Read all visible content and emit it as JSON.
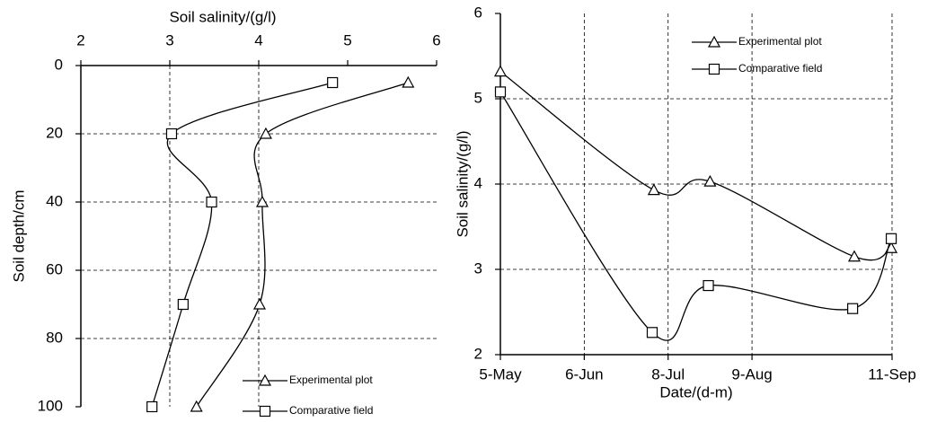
{
  "chart_data": [
    {
      "type": "line",
      "x_label": "Soil salinity/(g/l)",
      "y_label": "Soil depth/cm",
      "xlim": [
        2,
        6
      ],
      "xticks": [
        2,
        3,
        4,
        5,
        6
      ],
      "ylim": [
        0,
        100
      ],
      "yticks": [
        0,
        20,
        40,
        60,
        80,
        100
      ],
      "y_inverted": true,
      "x_axis_position": "top",
      "x_grid": [
        3,
        4
      ],
      "y_grid": [
        20,
        40,
        60,
        80
      ],
      "legend": "lower right",
      "series": [
        {
          "name": "Experimental plot",
          "color": "#000000",
          "marker": "triangle",
          "x": [
            5.68,
            4.08,
            4.04,
            4.01,
            3.3
          ],
          "values": [
            5,
            20,
            40,
            70,
            100
          ]
        },
        {
          "name": "Comparative field",
          "color": "#000000",
          "marker": "square",
          "x": [
            4.83,
            3.02,
            3.47,
            3.15,
            2.8
          ],
          "values": [
            5,
            20,
            40,
            70,
            100
          ]
        }
      ]
    },
    {
      "type": "line",
      "x_label": "Date/(d-m)",
      "y_label": "Soil salinity/(g/l)",
      "xlim": [
        0,
        4.67
      ],
      "xticks": [
        {
          "value": 0,
          "label": "5-May"
        },
        {
          "value": 1,
          "label": "6-Jun"
        },
        {
          "value": 2,
          "label": "8-Jul"
        },
        {
          "value": 3,
          "label": "9-Aug"
        },
        {
          "value": 4.67,
          "label": "11-Sep"
        }
      ],
      "ylim": [
        2,
        6
      ],
      "yticks": [
        2,
        3,
        4,
        5,
        6
      ],
      "y_inverted": false,
      "x_axis_position": "bottom",
      "x_grid": [
        1,
        2,
        3,
        4.67
      ],
      "y_grid": [
        3,
        4,
        5
      ],
      "legend": "upper right",
      "series": [
        {
          "name": "Experimental plot",
          "color": "#000000",
          "marker": "triangle",
          "x": [
            0,
            1.83,
            2.5,
            4.22,
            4.66
          ],
          "values": [
            5.32,
            3.93,
            4.03,
            3.15,
            3.25
          ]
        },
        {
          "name": "Comparative field",
          "color": "#000000",
          "marker": "square",
          "x": [
            0,
            1.81,
            2.48,
            4.2,
            4.66
          ],
          "values": [
            5.08,
            2.26,
            2.81,
            2.54,
            3.36
          ]
        }
      ]
    }
  ]
}
